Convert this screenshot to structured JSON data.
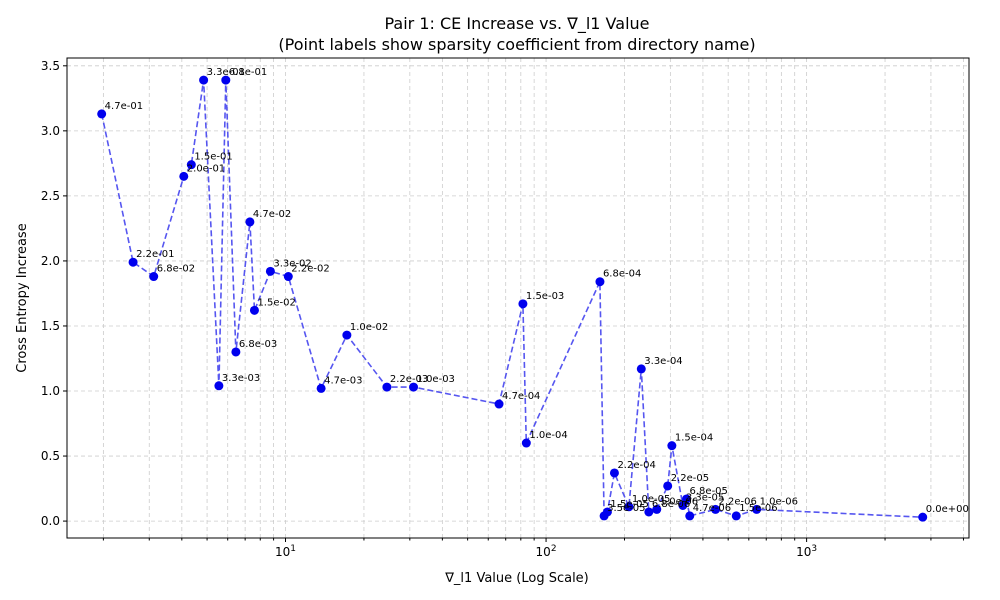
{
  "chart_data": {
    "type": "scatter",
    "title": "Pair 1: CE Increase vs. ∇_l1 Value",
    "subtitle": "(Point labels show sparsity coefficient from directory name)",
    "xlabel": "∇_l1 Value (Log Scale)",
    "ylabel": "Cross Entropy Increase",
    "xscale": "log",
    "xlim": [
      1.45,
      4200
    ],
    "ylim": [
      -0.13,
      3.56
    ],
    "xticks": [
      {
        "v": 10,
        "base": "10",
        "exp": "1"
      },
      {
        "v": 100,
        "base": "10",
        "exp": "2"
      },
      {
        "v": 1000,
        "base": "10",
        "exp": "3"
      }
    ],
    "yticks": [
      "0.0",
      "0.5",
      "1.0",
      "1.5",
      "2.0",
      "2.5",
      "3.0",
      "3.5"
    ],
    "grid": true,
    "line_style": "dashed",
    "color": "#0000ee",
    "line_color": "#4444ee",
    "points": [
      {
        "x": 1.97,
        "y": 3.13,
        "label": "4.7e-01"
      },
      {
        "x": 2.6,
        "y": 1.99,
        "label": "2.2e-01"
      },
      {
        "x": 3.12,
        "y": 1.88,
        "label": "6.8e-02"
      },
      {
        "x": 4.07,
        "y": 2.65,
        "label": "2.0e-01"
      },
      {
        "x": 4.35,
        "y": 2.74,
        "label": "1.5e-01"
      },
      {
        "x": 4.85,
        "y": 3.39,
        "label": "3.3e-01"
      },
      {
        "x": 5.55,
        "y": 1.04,
        "label": "3.3e-03"
      },
      {
        "x": 5.9,
        "y": 3.39,
        "label": "6.8e-01"
      },
      {
        "x": 6.45,
        "y": 1.3,
        "label": "6.8e-03"
      },
      {
        "x": 7.3,
        "y": 2.3,
        "label": "4.7e-02"
      },
      {
        "x": 7.6,
        "y": 1.62,
        "label": "1.5e-02"
      },
      {
        "x": 8.75,
        "y": 1.92,
        "label": "3.3e-02"
      },
      {
        "x": 10.25,
        "y": 1.88,
        "label": "2.2e-02"
      },
      {
        "x": 13.7,
        "y": 1.02,
        "label": "4.7e-03"
      },
      {
        "x": 17.2,
        "y": 1.43,
        "label": "1.0e-02"
      },
      {
        "x": 24.5,
        "y": 1.03,
        "label": "2.2e-03"
      },
      {
        "x": 31.0,
        "y": 1.03,
        "label": "1.0e-03"
      },
      {
        "x": 66.0,
        "y": 0.9,
        "label": "4.7e-04"
      },
      {
        "x": 81.5,
        "y": 1.67,
        "label": "1.5e-03"
      },
      {
        "x": 84.0,
        "y": 0.6,
        "label": "1.0e-04"
      },
      {
        "x": 161.0,
        "y": 1.84,
        "label": "6.8e-04"
      },
      {
        "x": 167.0,
        "y": 0.04,
        "label": "3.5e-05"
      },
      {
        "x": 172.0,
        "y": 0.07,
        "label": "1.5e-05"
      },
      {
        "x": 183.0,
        "y": 0.37,
        "label": "2.2e-04"
      },
      {
        "x": 208.0,
        "y": 0.11,
        "label": "1.0e-05"
      },
      {
        "x": 232.0,
        "y": 1.17,
        "label": "3.3e-04"
      },
      {
        "x": 248.0,
        "y": 0.07,
        "label": "6.8e-06"
      },
      {
        "x": 266.0,
        "y": 0.09,
        "label": "1.0e-06"
      },
      {
        "x": 293.0,
        "y": 0.27,
        "label": "2.2e-05"
      },
      {
        "x": 304.0,
        "y": 0.58,
        "label": "1.5e-04"
      },
      {
        "x": 335.0,
        "y": 0.12,
        "label": "3.3e-05"
      },
      {
        "x": 346.0,
        "y": 0.17,
        "label": "6.8e-05"
      },
      {
        "x": 356.0,
        "y": 0.04,
        "label": "4.7e-06"
      },
      {
        "x": 447.0,
        "y": 0.09,
        "label": "2.2e-06"
      },
      {
        "x": 537.0,
        "y": 0.04,
        "label": "1.5e-06"
      },
      {
        "x": 643.0,
        "y": 0.09,
        "label": "1.0e-06"
      },
      {
        "x": 2790.0,
        "y": 0.03,
        "label": "0.0e+00"
      }
    ]
  }
}
